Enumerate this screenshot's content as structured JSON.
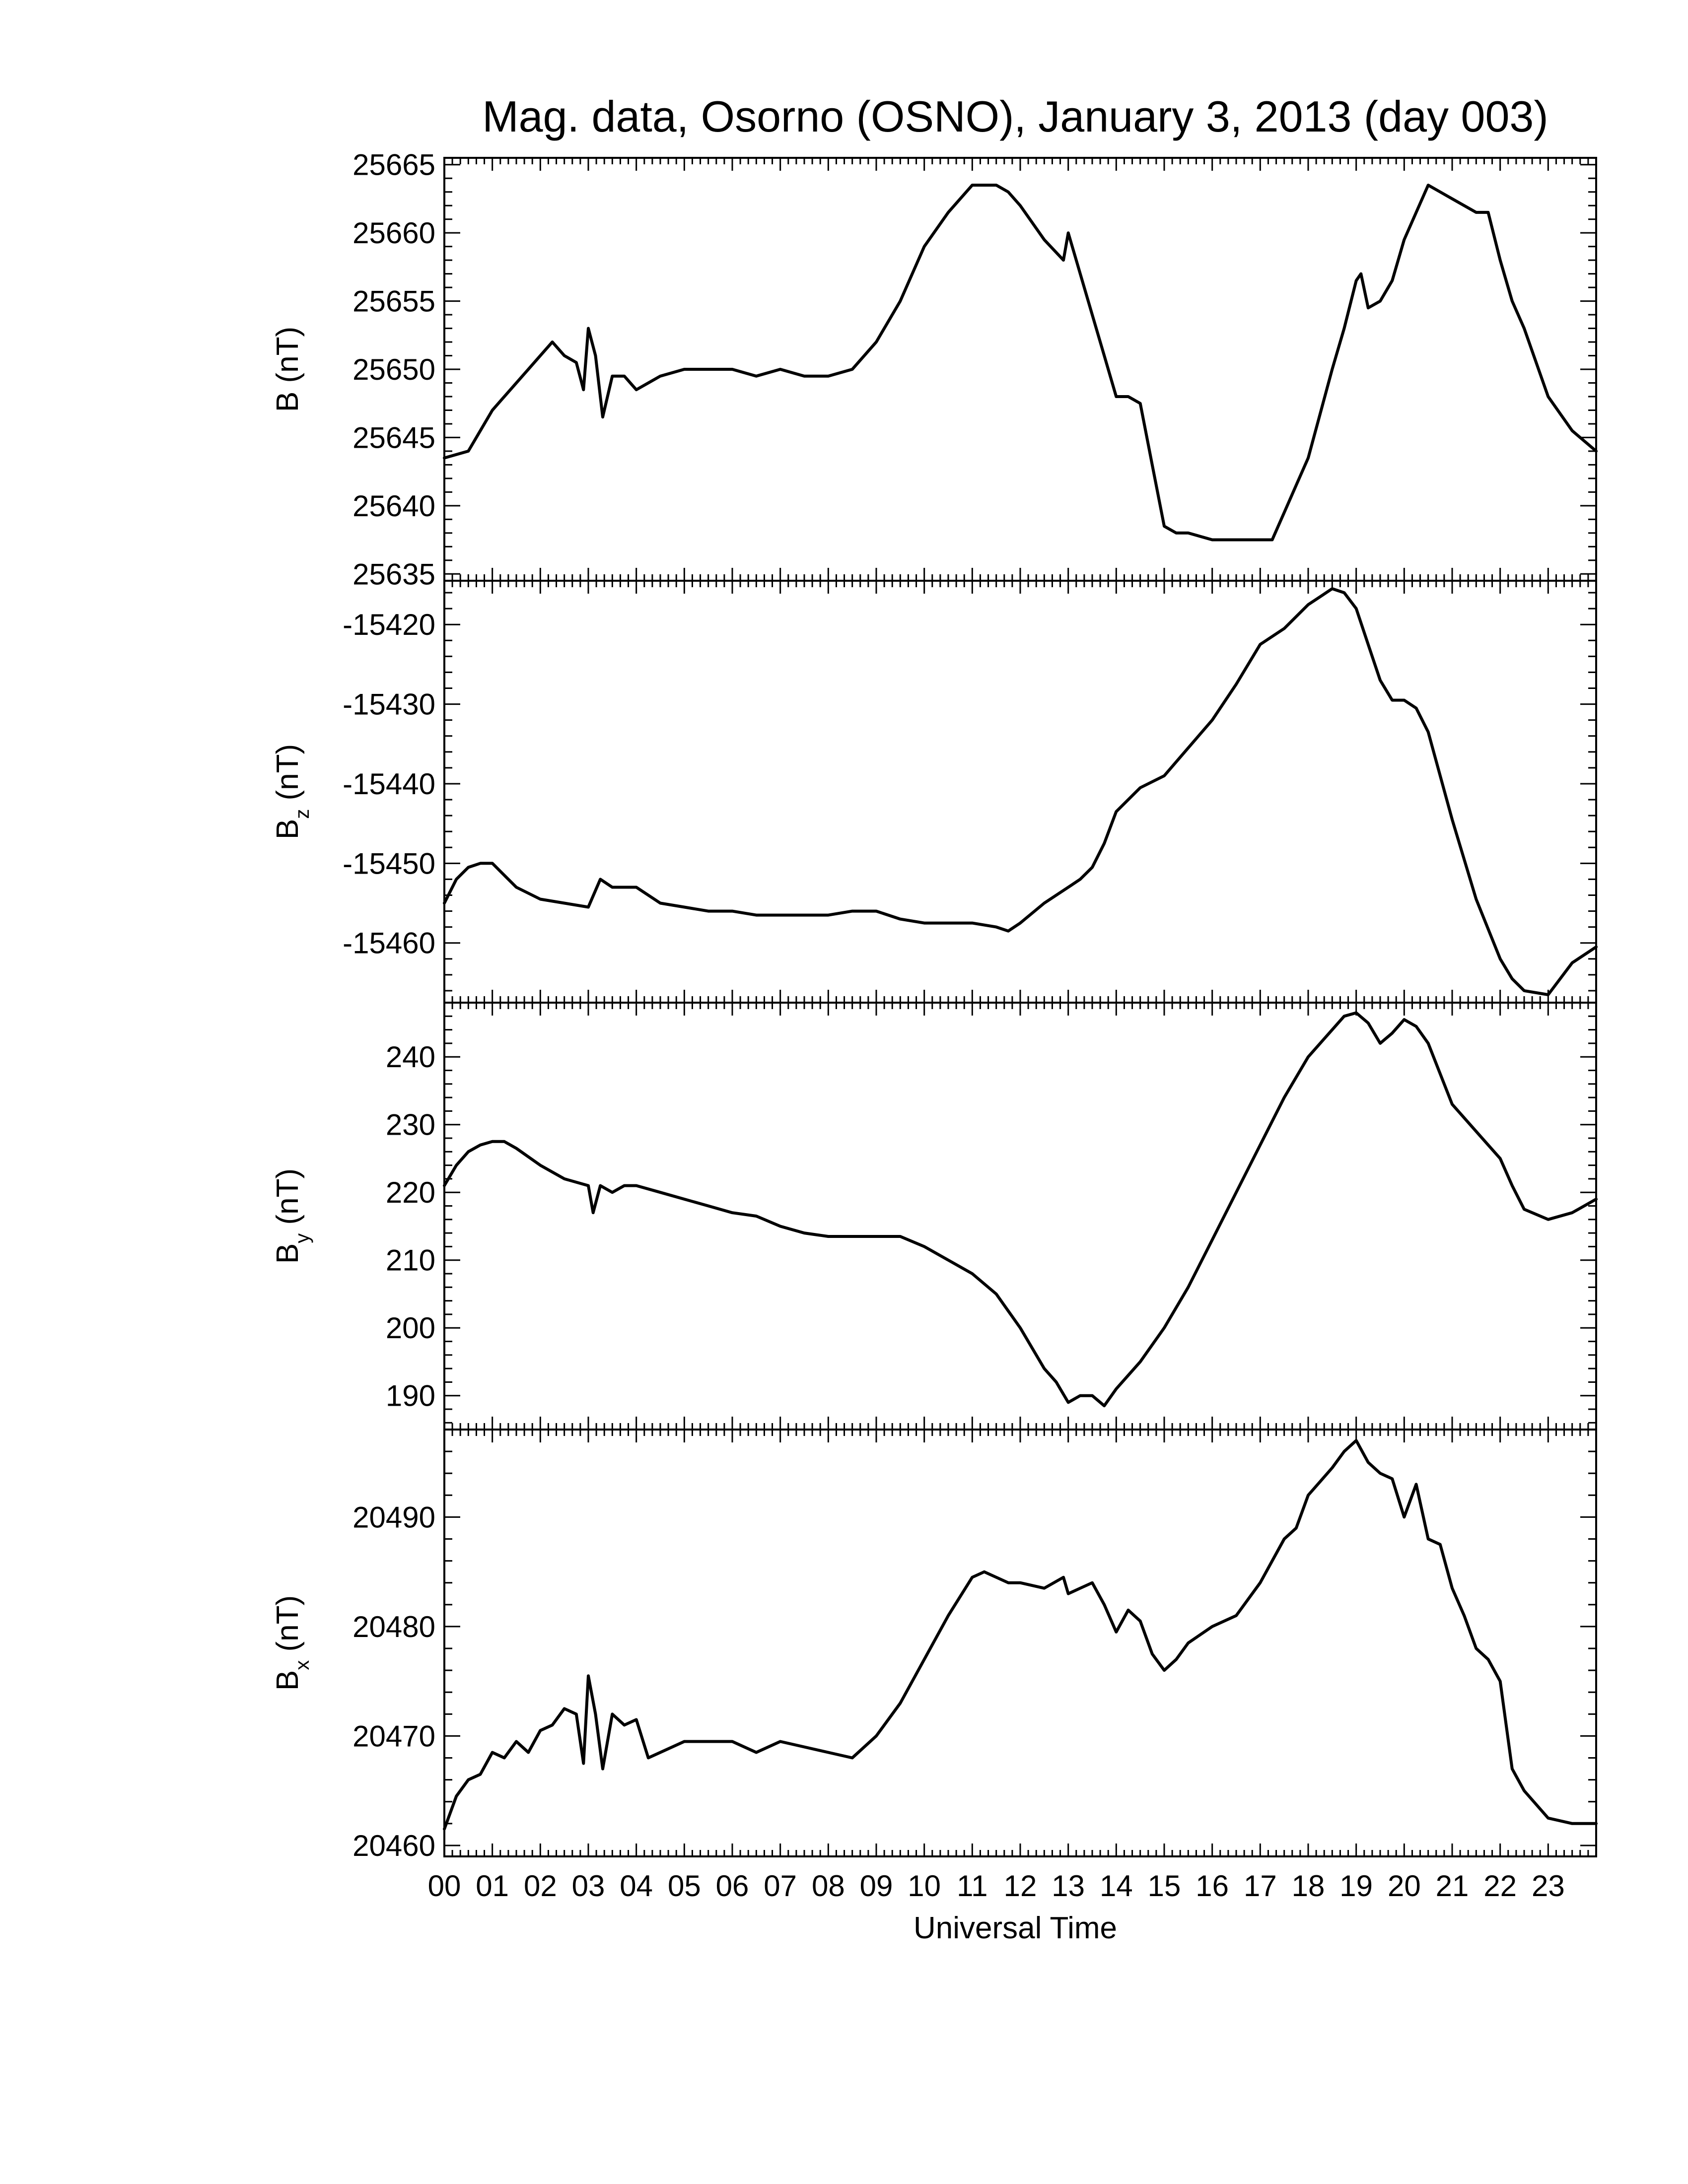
{
  "chart_data": {
    "type": "line",
    "title": "Mag. data, Osorno (OSNO), January 3, 2013 (day 003)",
    "xlabel": "Universal Time",
    "x_tick_labels": [
      "00",
      "01",
      "02",
      "03",
      "04",
      "05",
      "06",
      "07",
      "08",
      "09",
      "10",
      "11",
      "12",
      "13",
      "14",
      "15",
      "16",
      "17",
      "18",
      "19",
      "20",
      "21",
      "22",
      "23"
    ],
    "xlim": [
      0,
      24
    ],
    "line_color": "#000000",
    "panels": [
      {
        "id": "B",
        "ylabel_main": "B",
        "ylabel_sub": "",
        "ylabel_unit": "(nT)",
        "ylim": [
          25634.5,
          25665.5
        ],
        "yticks": [
          25635,
          25640,
          25645,
          25650,
          25655,
          25660,
          25665
        ],
        "x": [
          0,
          0.5,
          0.75,
          1.0,
          1.25,
          1.5,
          1.75,
          2.0,
          2.25,
          2.5,
          2.75,
          2.9,
          3.0,
          3.15,
          3.3,
          3.5,
          3.75,
          4.0,
          4.25,
          4.5,
          5.0,
          5.5,
          6.0,
          6.5,
          7.0,
          7.5,
          8.0,
          8.5,
          9.0,
          9.5,
          10.0,
          10.5,
          11.0,
          11.25,
          11.5,
          11.75,
          12.0,
          12.5,
          12.9,
          13.0,
          13.5,
          13.75,
          14.0,
          14.25,
          14.5,
          14.75,
          15.0,
          15.25,
          15.5,
          16.0,
          16.5,
          17.0,
          17.25,
          17.5,
          17.75,
          18.0,
          18.5,
          18.75,
          19.0,
          19.1,
          19.25,
          19.5,
          19.75,
          20.0,
          20.25,
          20.5,
          20.75,
          21.0,
          21.5,
          21.75,
          22.0,
          22.25,
          22.5,
          23.0,
          23.5,
          24.0
        ],
        "y": [
          25643.5,
          25644.0,
          25645.5,
          25647.0,
          25648.0,
          25649.0,
          25650.0,
          25651.0,
          25652.0,
          25651.0,
          25650.5,
          25648.5,
          25653.0,
          25651.0,
          25646.5,
          25649.5,
          25649.5,
          25648.5,
          25649.0,
          25649.5,
          25650.0,
          25650.0,
          25650.0,
          25649.5,
          25650.0,
          25649.5,
          25649.5,
          25650.0,
          25652.0,
          25655.0,
          25659.0,
          25661.5,
          25663.5,
          25663.5,
          25663.5,
          25663.0,
          25662.0,
          25659.5,
          25658.0,
          25660.0,
          25654.0,
          25651.0,
          25648.0,
          25648.0,
          25647.5,
          25643.0,
          25638.5,
          25638.0,
          25638.0,
          25637.5,
          25637.5,
          25637.5,
          25637.5,
          25639.5,
          25641.5,
          25643.5,
          25650.0,
          25653.0,
          25656.5,
          25657.0,
          25654.5,
          25655.0,
          25656.5,
          25659.5,
          25661.5,
          25663.5,
          25663.0,
          25662.5,
          25661.5,
          25661.5,
          25658.0,
          25655.0,
          25653.0,
          25648.0,
          25645.5,
          25644.0
        ]
      },
      {
        "id": "Bz",
        "ylabel_main": "B",
        "ylabel_sub": "z",
        "ylabel_unit": "(nT)",
        "ylim": [
          -15467.5,
          -15414.5
        ],
        "yticks": [
          -15460,
          -15450,
          -15440,
          -15430,
          -15420
        ],
        "x": [
          0,
          0.25,
          0.5,
          0.75,
          1.0,
          1.25,
          1.5,
          2.0,
          2.5,
          3.0,
          3.25,
          3.5,
          4.0,
          4.5,
          5.0,
          5.5,
          6.0,
          6.5,
          7.0,
          7.5,
          8.0,
          8.5,
          9.0,
          9.5,
          10.0,
          10.5,
          11.0,
          11.5,
          11.75,
          12.0,
          12.5,
          13.0,
          13.25,
          13.5,
          13.75,
          14.0,
          14.5,
          15.0,
          15.5,
          16.0,
          16.5,
          17.0,
          17.5,
          17.75,
          18.0,
          18.25,
          18.5,
          18.75,
          19.0,
          19.25,
          19.5,
          19.75,
          20.0,
          20.25,
          20.5,
          21.0,
          21.5,
          22.0,
          22.25,
          22.5,
          23.0,
          23.5,
          24.0
        ],
        "y": [
          -15455,
          -15452,
          -15450.5,
          -15450,
          -15450,
          -15451.5,
          -15453,
          -15454.5,
          -15455,
          -15455.5,
          -15452,
          -15453,
          -15453,
          -15455,
          -15455.5,
          -15456,
          -15456,
          -15456.5,
          -15456.5,
          -15456.5,
          -15456.5,
          -15456,
          -15456,
          -15457,
          -15457.5,
          -15457.5,
          -15457.5,
          -15458,
          -15458.5,
          -15457.5,
          -15455,
          -15453,
          -15452,
          -15450.5,
          -15447.5,
          -15443.5,
          -15440.5,
          -15439,
          -15435.5,
          -15432,
          -15427.5,
          -15422.5,
          -15420.5,
          -15419,
          -15417.5,
          -15416.5,
          -15415.5,
          -15416,
          -15418,
          -15422.5,
          -15427,
          -15429.5,
          -15429.5,
          -15430.5,
          -15433.5,
          -15444.5,
          -15454.5,
          -15462,
          -15464.5,
          -15466,
          -15466.5,
          -15462.5,
          -15460.5
        ]
      },
      {
        "id": "By",
        "ylabel_main": "B",
        "ylabel_sub": "y",
        "ylabel_unit": "(nT)",
        "ylim": [
          185,
          248
        ],
        "yticks": [
          190,
          200,
          210,
          220,
          230,
          240
        ],
        "x": [
          0,
          0.25,
          0.5,
          0.75,
          1.0,
          1.25,
          1.5,
          2.0,
          2.5,
          3.0,
          3.1,
          3.25,
          3.5,
          3.75,
          4.0,
          4.5,
          5.0,
          5.5,
          6.0,
          6.5,
          7.0,
          7.5,
          8.0,
          8.5,
          9.0,
          9.5,
          10.0,
          10.5,
          11.0,
          11.5,
          12.0,
          12.5,
          12.75,
          13.0,
          13.25,
          13.5,
          13.75,
          14.0,
          14.5,
          15.0,
          15.5,
          16.0,
          16.5,
          17.0,
          17.5,
          18.0,
          18.5,
          18.75,
          19.0,
          19.25,
          19.5,
          19.75,
          20.0,
          20.25,
          20.5,
          21.0,
          21.5,
          22.0,
          22.25,
          22.5,
          23.0,
          23.5,
          24.0
        ],
        "y": [
          221,
          224,
          226,
          227,
          227.5,
          227.5,
          226.5,
          224,
          222,
          221,
          217,
          221,
          220,
          221,
          221,
          220,
          219,
          218,
          217,
          216.5,
          215,
          214,
          213.5,
          213.5,
          213.5,
          213.5,
          212,
          210,
          208,
          205,
          200,
          194,
          192,
          189,
          190,
          190,
          188.5,
          191,
          195,
          200,
          206,
          213,
          220,
          227,
          234,
          240,
          244,
          246,
          246.5,
          245,
          242,
          243.5,
          245.5,
          244.5,
          242,
          233,
          229,
          225,
          221,
          217.5,
          216,
          217,
          219
        ]
      },
      {
        "id": "Bx",
        "ylabel_main": "B",
        "ylabel_sub": "x",
        "ylabel_unit": "(nT)",
        "ylim": [
          20459,
          20498
        ],
        "yticks": [
          20460,
          20470,
          20480,
          20490
        ],
        "x": [
          0,
          0.25,
          0.5,
          0.75,
          1.0,
          1.25,
          1.5,
          1.75,
          2.0,
          2.25,
          2.5,
          2.75,
          2.9,
          3.0,
          3.15,
          3.3,
          3.5,
          3.75,
          4.0,
          4.25,
          4.5,
          5.0,
          5.5,
          6.0,
          6.5,
          7.0,
          7.5,
          8.0,
          8.5,
          9.0,
          9.5,
          10.0,
          10.5,
          11.0,
          11.25,
          11.5,
          11.75,
          12.0,
          12.5,
          12.9,
          13.0,
          13.25,
          13.5,
          13.75,
          14.0,
          14.25,
          14.5,
          14.75,
          15.0,
          15.25,
          15.5,
          16.0,
          16.5,
          17.0,
          17.5,
          17.75,
          18.0,
          18.5,
          18.75,
          19.0,
          19.25,
          19.5,
          19.75,
          20.0,
          20.25,
          20.5,
          20.75,
          21.0,
          21.25,
          21.5,
          21.75,
          22.0,
          22.25,
          22.5,
          23.0,
          23.5,
          24.0
        ],
        "y": [
          20461.5,
          20464.5,
          20466,
          20466.5,
          20468.5,
          20468,
          20469.5,
          20468.5,
          20470.5,
          20471,
          20472.5,
          20472,
          20467.5,
          20475.5,
          20472,
          20467,
          20472,
          20471,
          20471.5,
          20468,
          20468.5,
          20469.5,
          20469.5,
          20469.5,
          20468.5,
          20469.5,
          20469,
          20468.5,
          20468,
          20470,
          20473,
          20477,
          20481,
          20484.5,
          20485,
          20484.5,
          20484,
          20484,
          20483.5,
          20484.5,
          20483,
          20483.5,
          20484,
          20482,
          20479.5,
          20481.5,
          20480.5,
          20477.5,
          20476,
          20477,
          20478.5,
          20480,
          20481,
          20484,
          20488,
          20489,
          20492,
          20494.5,
          20496,
          20497,
          20495,
          20494,
          20493.5,
          20490,
          20493,
          20488,
          20487.5,
          20483.5,
          20481,
          20478,
          20477,
          20475,
          20467,
          20465,
          20462.5,
          20462,
          20462
        ]
      }
    ]
  }
}
